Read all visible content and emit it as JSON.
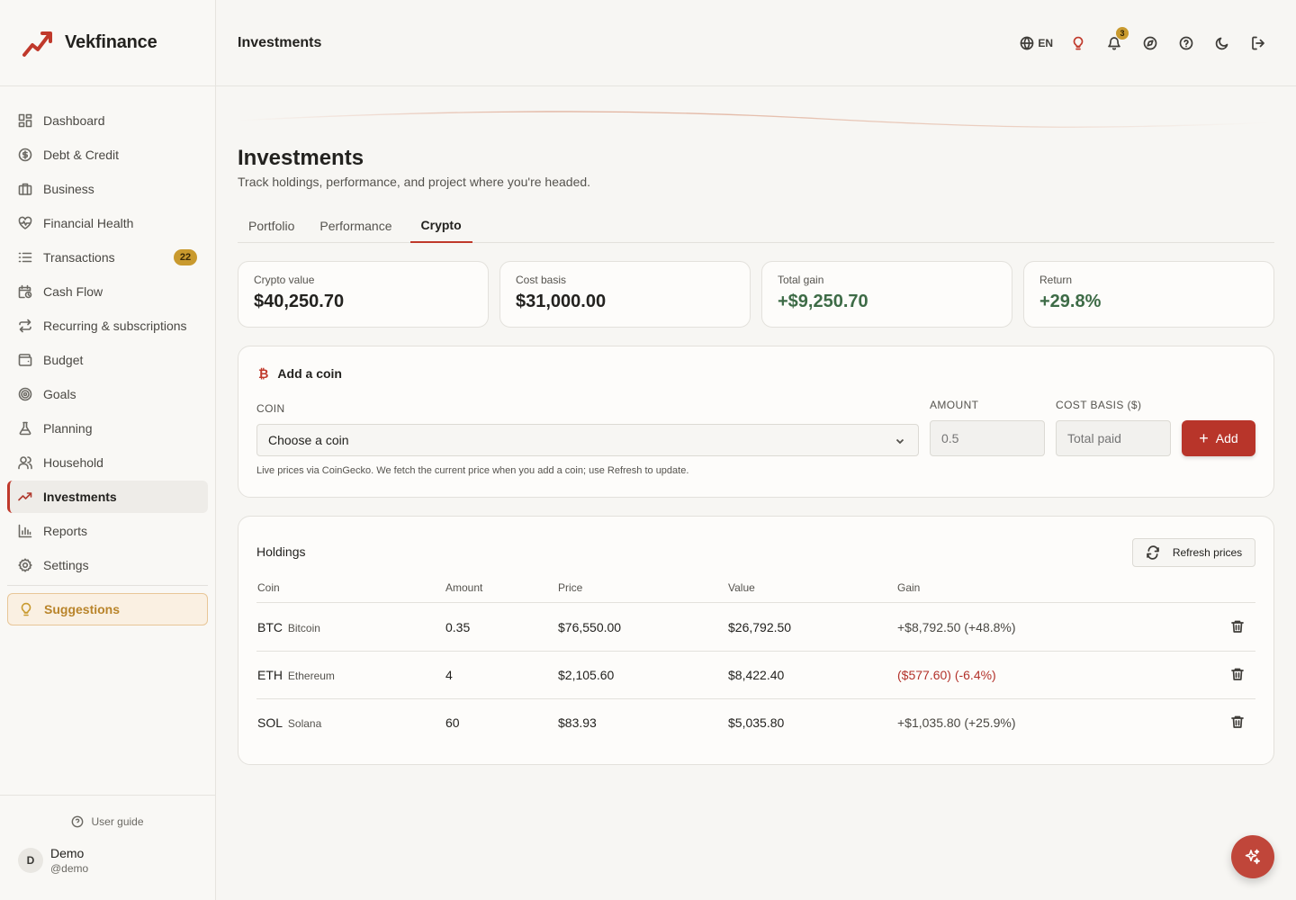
{
  "brand": {
    "name": "Vekfinance",
    "accent": "#c0392b"
  },
  "sidebar": {
    "items": [
      {
        "label": "Dashboard",
        "icon": "dashboard-icon"
      },
      {
        "label": "Debt & Credit",
        "icon": "dollar-circle-icon"
      },
      {
        "label": "Business",
        "icon": "briefcase-icon"
      },
      {
        "label": "Financial Health",
        "icon": "heart-pulse-icon"
      },
      {
        "label": "Transactions",
        "icon": "list-icon",
        "badge": "22"
      },
      {
        "label": "Cash Flow",
        "icon": "calendar-clock-icon"
      },
      {
        "label": "Recurring & subscriptions",
        "icon": "repeat-icon"
      },
      {
        "label": "Budget",
        "icon": "wallet-icon"
      },
      {
        "label": "Goals",
        "icon": "target-icon"
      },
      {
        "label": "Planning",
        "icon": "flask-icon"
      },
      {
        "label": "Household",
        "icon": "users-icon"
      },
      {
        "label": "Investments",
        "icon": "trending-up-icon",
        "active": true
      },
      {
        "label": "Reports",
        "icon": "bar-chart-icon"
      },
      {
        "label": "Settings",
        "icon": "gear-icon"
      }
    ],
    "suggestions_label": "Suggestions",
    "user_guide_label": "User guide",
    "user": {
      "initial": "D",
      "name": "Demo",
      "handle": "@demo"
    }
  },
  "header": {
    "title": "Investments",
    "language": "EN",
    "notification_count": "3"
  },
  "page": {
    "title": "Investments",
    "subtitle": "Track holdings, performance, and project where you're headed.",
    "tabs": [
      {
        "label": "Portfolio"
      },
      {
        "label": "Performance"
      },
      {
        "label": "Crypto",
        "active": true
      }
    ]
  },
  "stats": [
    {
      "label": "Crypto value",
      "value": "$40,250.70"
    },
    {
      "label": "Cost basis",
      "value": "$31,000.00"
    },
    {
      "label": "Total gain",
      "value": "+$9,250.70"
    },
    {
      "label": "Return",
      "value": "+29.8%"
    }
  ],
  "add_coin": {
    "title": "Add a coin",
    "coin_label": "COIN",
    "coin_selected": "Choose a coin",
    "amount_label": "AMOUNT",
    "amount_placeholder": "0.5",
    "cost_label": "COST BASIS ($)",
    "cost_placeholder": "Total paid",
    "add_label": "Add",
    "hint": "Live prices via CoinGecko. We fetch the current price when you add a coin; use Refresh to update."
  },
  "holdings": {
    "title": "Holdings",
    "refresh_label": "Refresh prices",
    "columns": [
      "Coin",
      "Amount",
      "Price",
      "Value",
      "Gain"
    ],
    "rows": [
      {
        "symbol": "BTC",
        "name": "Bitcoin",
        "amount": "0.35",
        "price": "$76,550.00",
        "value": "$26,792.50",
        "gain": "+$8,792.50 (+48.8%)"
      },
      {
        "symbol": "ETH",
        "name": "Ethereum",
        "amount": "4",
        "price": "$2,105.60",
        "value": "$8,422.40",
        "gain": "($577.60) (-6.4%)"
      },
      {
        "symbol": "SOL",
        "name": "Solana",
        "amount": "60",
        "price": "$83.93",
        "value": "$5,035.80",
        "gain": "+$1,035.80 (+25.9%)"
      }
    ]
  },
  "colors": {
    "positive": "#3d6b46",
    "negative": "#b3322b",
    "badge": "#c99a2e"
  }
}
